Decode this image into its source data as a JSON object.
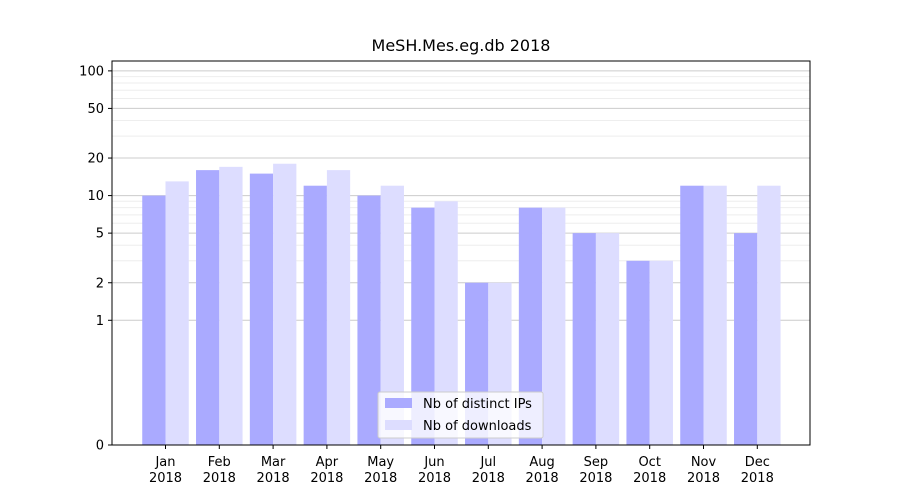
{
  "chart_data": {
    "type": "bar",
    "title": "MeSH.Mes.eg.db 2018",
    "xlabel": "",
    "ylabel": "",
    "y_scale": "symlog",
    "ylim": [
      0,
      120
    ],
    "yticks": [
      0,
      1,
      2,
      5,
      10,
      20,
      50,
      100
    ],
    "grid": true,
    "legend_position": "lower center",
    "categories": [
      [
        "Jan",
        "2018"
      ],
      [
        "Feb",
        "2018"
      ],
      [
        "Mar",
        "2018"
      ],
      [
        "Apr",
        "2018"
      ],
      [
        "May",
        "2018"
      ],
      [
        "Jun",
        "2018"
      ],
      [
        "Jul",
        "2018"
      ],
      [
        "Aug",
        "2018"
      ],
      [
        "Sep",
        "2018"
      ],
      [
        "Oct",
        "2018"
      ],
      [
        "Nov",
        "2018"
      ],
      [
        "Dec",
        "2018"
      ]
    ],
    "series": [
      {
        "name": "Nb of distinct IPs",
        "color": "#aaaaff",
        "values": [
          10,
          16,
          15,
          12,
          10,
          8,
          2,
          8,
          5,
          3,
          12,
          5
        ]
      },
      {
        "name": "Nb of downloads",
        "color": "#ddddff",
        "values": [
          13,
          17,
          18,
          16,
          12,
          9,
          2,
          8,
          5,
          3,
          12,
          12
        ]
      }
    ]
  }
}
